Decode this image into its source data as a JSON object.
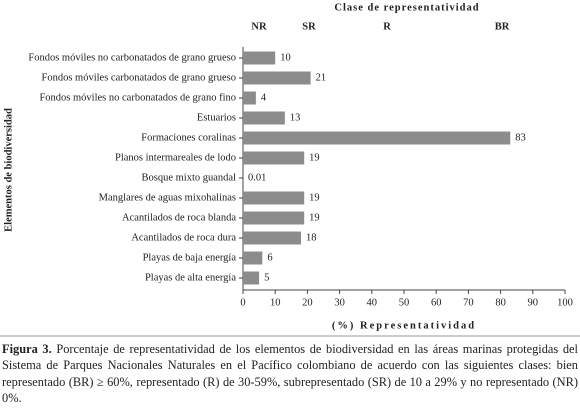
{
  "chart_data": {
    "type": "bar",
    "orientation": "horizontal",
    "header": "Clase de representatividad",
    "class_labels": [
      "NR",
      "SR",
      "R",
      "BR"
    ],
    "categories": [
      "Fondos móviles no carbonatados de grano grueso",
      "Fondos móviles carbonatados de grano grueso",
      "Fondos móviles no carbonatados de grano fino",
      "Estuarios",
      "Formaciones coralinas",
      "Planos intermareales de lodo",
      "Bosque mixto guandal",
      "Manglares de aguas mixohalinas",
      "Acantilados de roca blanda",
      "Acantilados de roca dura",
      "Playas de baja energía",
      "Playas de alta energía"
    ],
    "values": [
      10,
      21,
      4,
      13,
      83,
      19,
      0.01,
      19,
      19,
      18,
      6,
      5
    ],
    "color": "#8c8c8c",
    "xlim": [
      0,
      100
    ],
    "xticks": [
      0,
      10,
      20,
      30,
      40,
      50,
      60,
      70,
      80,
      90,
      100
    ],
    "xlabel": "(%) Representatividad",
    "ylabel": "Elementos de biodiversidad"
  },
  "caption": {
    "label": "Figura 3.",
    "text": "Porcentaje de representatividad de los elementos de biodiversidad en las áreas marinas protegidas del Sistema de Parques Nacionales Naturales en el Pacífico colombiano de acuerdo con las siguientes clases: bien representado (BR) ≥ 60%, representado (R) de 30-59%, subrepresentado (SR) de 10 a 29% y no representado (NR) 0%."
  }
}
